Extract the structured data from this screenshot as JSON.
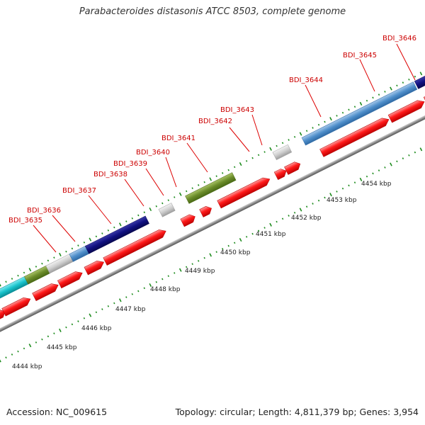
{
  "title": "Parabacteroides distasonis ATCC 8503, complete genome",
  "accession": "Accession: NC_009615",
  "summary": "Topology: circular; Length: 4,811,379 bp; Genes: 3,954",
  "colors": {
    "label": "#cc0000",
    "tick": "#1e8c1e",
    "backbone": "#8c8c8c",
    "cds": "#ff0000"
  },
  "gene_labels": [
    "BDI_3635",
    "BDI_3636",
    "BDI_3637",
    "BDI_3638",
    "BDI_3639",
    "BDI_3640",
    "BDI_3641",
    "BDI_3642",
    "BDI_3643",
    "BDI_3644",
    "BDI_3645",
    "BDI_3646"
  ],
  "kbp_labels": [
    "4444 kbp",
    "4445 kbp",
    "4446 kbp",
    "4447 kbp",
    "4448 kbp",
    "4449 kbp",
    "4450 kbp",
    "4451 kbp",
    "4452 kbp",
    "4453 kbp",
    "4454 kbp"
  ]
}
